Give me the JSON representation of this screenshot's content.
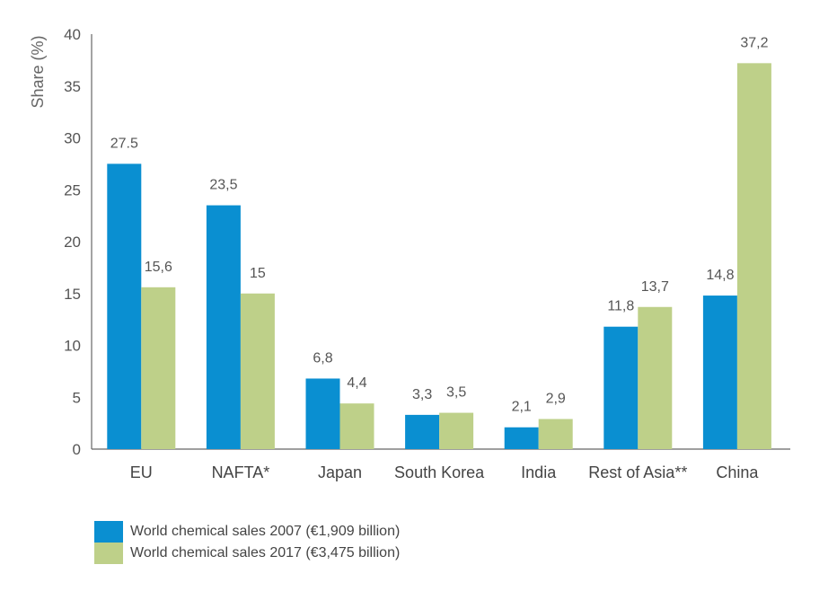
{
  "chart_data": {
    "type": "bar",
    "ylabel": "Share (%)",
    "ylim": [
      0,
      40
    ],
    "yticks": [
      0,
      5,
      10,
      15,
      20,
      25,
      30,
      35,
      40
    ],
    "categories": [
      "EU",
      "NAFTA*",
      "Japan",
      "South Korea",
      "India",
      "Rest of Asia**",
      "China"
    ],
    "series": [
      {
        "name": "World chemical sales 2007 (€1,909 billion)",
        "color": "#0a8fd1",
        "values": [
          27.5,
          23.5,
          6.8,
          3.3,
          2.1,
          11.8,
          14.8
        ],
        "labels": [
          "27.5",
          "23,5",
          "6,8",
          "3,3",
          "2,1",
          "11,8",
          "14,8"
        ]
      },
      {
        "name": "World chemical sales 2017 (€3,475 billion)",
        "color": "#bed089",
        "values": [
          15.6,
          15,
          4.4,
          3.5,
          2.9,
          13.7,
          37.2
        ],
        "labels": [
          "15,6",
          "15",
          "4,4",
          "3,5",
          "2,9",
          "13,7",
          "37,2"
        ]
      }
    ],
    "legend_position": "bottom-left"
  }
}
